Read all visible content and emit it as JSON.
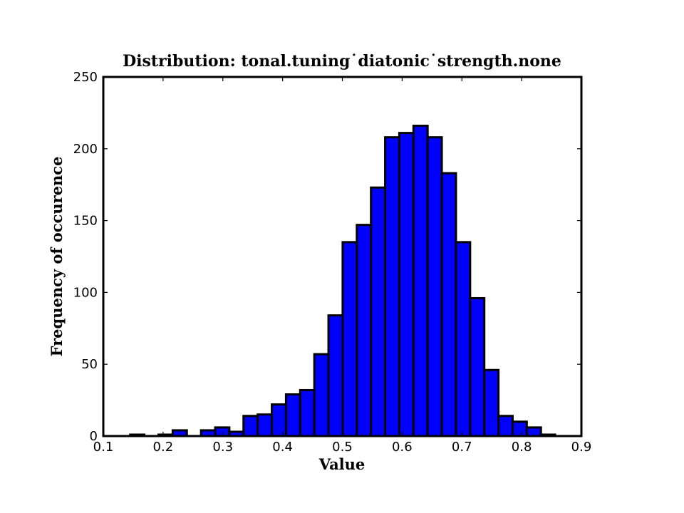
{
  "chart_data": {
    "type": "bar",
    "title": "Distribution: tonal.tuning˙diatonic˙strength.none",
    "xlabel": "Value",
    "ylabel": "Frequency of occurence",
    "xlim": [
      0.1,
      0.9
    ],
    "ylim": [
      0,
      250
    ],
    "x_ticks": [
      0.1,
      0.2,
      0.3,
      0.4,
      0.5,
      0.6,
      0.7,
      0.8,
      0.9
    ],
    "x_tick_labels": [
      "0.1",
      "0.2",
      "0.3",
      "0.4",
      "0.5",
      "0.6",
      "0.7",
      "0.8",
      "0.9"
    ],
    "y_ticks": [
      0,
      50,
      100,
      150,
      200,
      250
    ],
    "y_tick_labels": [
      "0",
      "50",
      "100",
      "150",
      "200",
      "250"
    ],
    "grid": false,
    "bin_edges": [
      0.145,
      0.1687,
      0.1924,
      0.2161,
      0.2398,
      0.2635,
      0.2872,
      0.3109,
      0.3346,
      0.3583,
      0.382,
      0.4057,
      0.4294,
      0.4531,
      0.4768,
      0.5005,
      0.5242,
      0.5479,
      0.5716,
      0.5953,
      0.619,
      0.6427,
      0.6664,
      0.6901,
      0.7138,
      0.7375,
      0.7612,
      0.7849,
      0.8086,
      0.8323,
      0.856
    ],
    "values": [
      1,
      0,
      1,
      4,
      0,
      4,
      6,
      3,
      14,
      15,
      22,
      29,
      32,
      57,
      84,
      135,
      147,
      173,
      208,
      211,
      216,
      208,
      183,
      135,
      96,
      46,
      14,
      10,
      6,
      1
    ],
    "colors": {
      "bar_fill": "#0000ff",
      "bar_edge": "#000000",
      "background": "#ffffff"
    }
  }
}
